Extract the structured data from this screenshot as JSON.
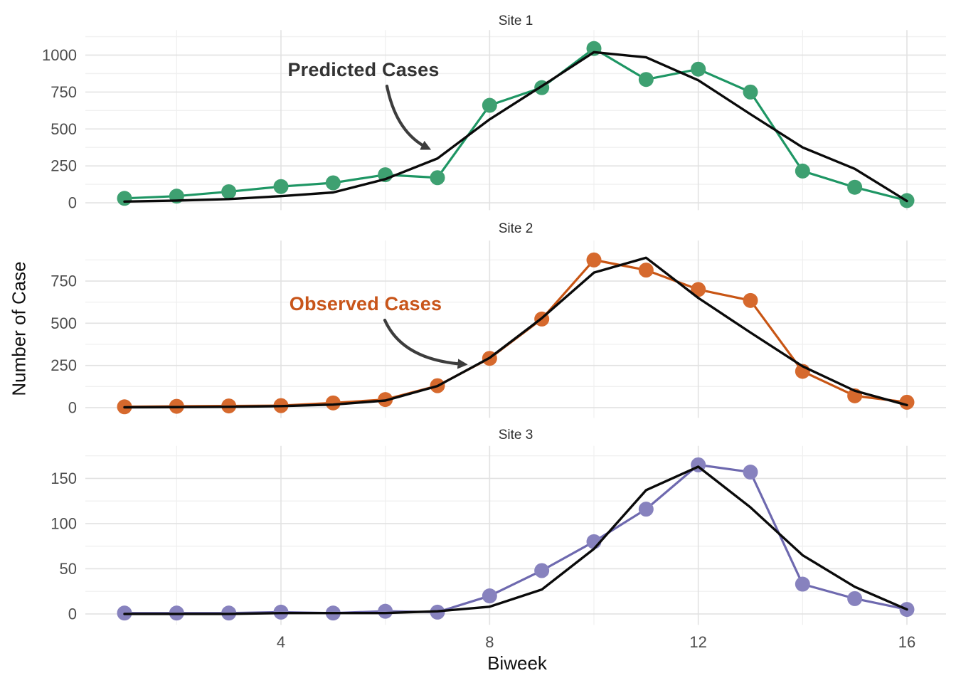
{
  "figure": {
    "x_axis": {
      "title": "Biweek",
      "ticks": [
        4,
        8,
        12,
        16
      ],
      "minor_gridlines": [
        2,
        6,
        10,
        14
      ],
      "range": [
        1,
        16
      ]
    },
    "y_axis": {
      "title": "Number of Case"
    },
    "annotations": {
      "predicted": {
        "label": "Predicted Cases",
        "color": "#333333",
        "points_to": "black prediction line, Site 1, biweek 7"
      },
      "observed": {
        "label": "Observed Cases",
        "color": "#C8551A",
        "points_to": "orange observed point, Site 2, biweek 8"
      }
    },
    "colors": {
      "site1_point": "#3EA071",
      "site1_line": "#1E9664",
      "site2_point": "#D6692D",
      "site2_line": "#C85514",
      "site3_point": "#8782BE",
      "site3_line": "#6E69AF",
      "predicted_line": "#0A0A0A",
      "arrow": "#3D3D3D",
      "grid_major": "#E2E2E2",
      "grid_minor": "#F0F0F0",
      "tick_text": "#4D4D4D"
    }
  },
  "chart_data": [
    {
      "type": "line",
      "title": "Site 1",
      "x": [
        1,
        2,
        3,
        4,
        5,
        6,
        7,
        8,
        9,
        10,
        11,
        12,
        13,
        14,
        15,
        16
      ],
      "series": [
        {
          "name": "Observed Cases",
          "role": "observed",
          "values": [
            30,
            45,
            75,
            110,
            135,
            190,
            170,
            660,
            780,
            1045,
            835,
            905,
            750,
            215,
            105,
            15
          ]
        },
        {
          "name": "Predicted Cases",
          "role": "predicted",
          "values": [
            8,
            15,
            25,
            45,
            70,
            160,
            300,
            565,
            790,
            1020,
            985,
            830,
            600,
            375,
            230,
            12
          ]
        }
      ],
      "y_ticks": [
        0,
        250,
        500,
        750,
        1000
      ],
      "y_minor_gridlines": [
        125,
        375,
        625,
        875,
        1125
      ],
      "ylim": [
        0,
        1045
      ],
      "grid": true,
      "legend": "none"
    },
    {
      "type": "line",
      "title": "Site 2",
      "x": [
        1,
        2,
        3,
        4,
        5,
        6,
        7,
        8,
        9,
        10,
        11,
        12,
        13,
        14,
        15,
        16
      ],
      "series": [
        {
          "name": "Observed Cases",
          "role": "observed",
          "values": [
            5,
            8,
            10,
            12,
            28,
            48,
            130,
            292,
            525,
            875,
            815,
            700,
            635,
            215,
            70,
            32
          ]
        },
        {
          "name": "Predicted Cases",
          "role": "predicted",
          "values": [
            2,
            3,
            5,
            9,
            18,
            42,
            128,
            295,
            530,
            800,
            888,
            650,
            445,
            245,
            100,
            15
          ]
        }
      ],
      "y_ticks": [
        0,
        250,
        500,
        750
      ],
      "y_minor_gridlines": [
        125,
        375,
        625,
        875
      ],
      "ylim": [
        0,
        888
      ],
      "grid": true,
      "legend": "none"
    },
    {
      "type": "line",
      "title": "Site 3",
      "x": [
        1,
        2,
        3,
        4,
        5,
        6,
        7,
        8,
        9,
        10,
        11,
        12,
        13,
        14,
        15,
        16
      ],
      "series": [
        {
          "name": "Observed Cases",
          "role": "observed",
          "values": [
            1,
            1,
            1,
            2,
            1,
            3,
            2,
            20,
            48,
            80,
            116,
            165,
            157,
            33,
            17,
            5
          ]
        },
        {
          "name": "Predicted Cases",
          "role": "predicted",
          "values": [
            0,
            0,
            0,
            1,
            1,
            1,
            3,
            8,
            27,
            72,
            137,
            163,
            118,
            65,
            30,
            5
          ]
        }
      ],
      "y_ticks": [
        0,
        50,
        100,
        150
      ],
      "y_minor_gridlines": [
        25,
        75,
        125,
        175
      ],
      "ylim": [
        0,
        165
      ],
      "grid": true,
      "legend": "none"
    }
  ]
}
